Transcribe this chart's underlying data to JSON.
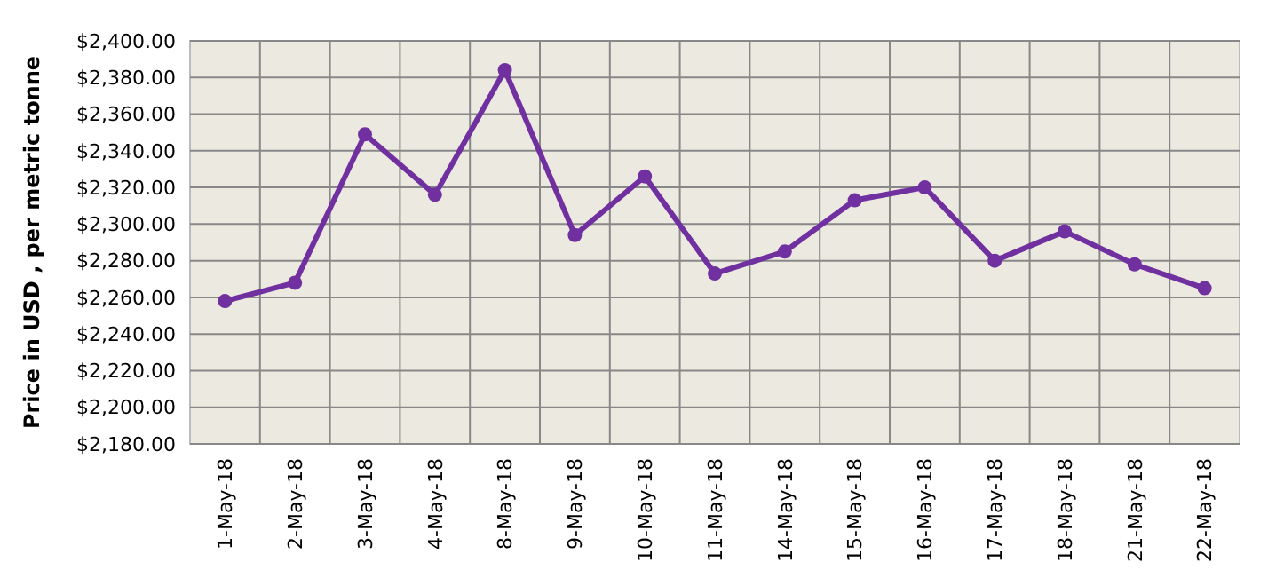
{
  "chart_data": {
    "type": "line",
    "ylabel": "Price in USD , per metric tonne",
    "categories": [
      "1-May-18",
      "2-May-18",
      "3-May-18",
      "4-May-18",
      "8-May-18",
      "9-May-18",
      "10-May-18",
      "11-May-18",
      "14-May-18",
      "15-May-18",
      "16-May-18",
      "17-May-18",
      "18-May-18",
      "21-May-18",
      "22-May-18"
    ],
    "series": [
      {
        "color": "#7030a0",
        "values": [
          2258,
          2268,
          2349,
          2316,
          2384,
          2294,
          2326,
          2273,
          2285,
          2313,
          2320,
          2280,
          2296,
          2278,
          2265
        ]
      }
    ],
    "ylim": [
      2180,
      2400
    ],
    "yticks": [
      {
        "value": 2180,
        "label": "$2,180.00"
      },
      {
        "value": 2200,
        "label": "$2,200.00"
      },
      {
        "value": 2220,
        "label": "$2,220.00"
      },
      {
        "value": 2240,
        "label": "$2,240.00"
      },
      {
        "value": 2260,
        "label": "$2,260.00"
      },
      {
        "value": 2280,
        "label": "$2,280.00"
      },
      {
        "value": 2300,
        "label": "$2,300.00"
      },
      {
        "value": 2320,
        "label": "$2,320.00"
      },
      {
        "value": 2340,
        "label": "$2,340.00"
      },
      {
        "value": 2360,
        "label": "$2,360.00"
      },
      {
        "value": 2380,
        "label": "$2,380.00"
      },
      {
        "value": 2400,
        "label": "$2,400.00"
      }
    ],
    "grid": true,
    "marker": "circle",
    "line_style": "solid"
  }
}
